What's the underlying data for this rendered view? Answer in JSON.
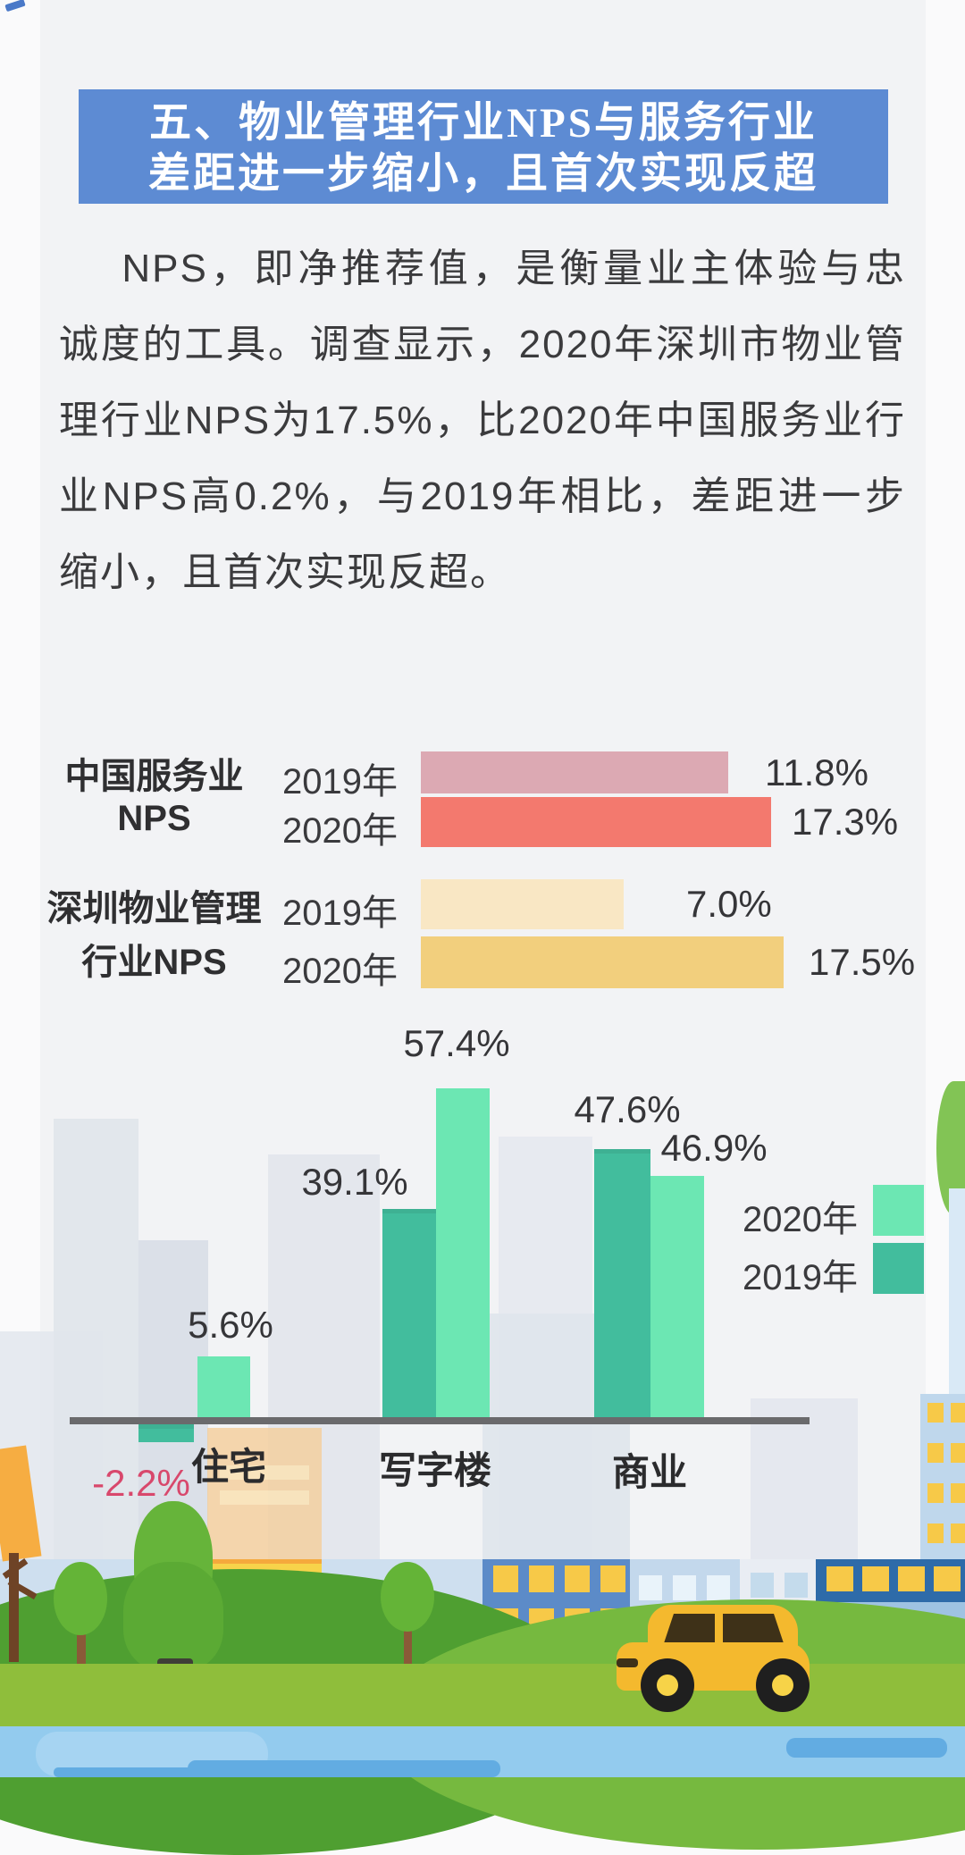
{
  "page": {
    "bg": "#FAFAFB",
    "card_bg": "#F2F3F5"
  },
  "title": {
    "line1": "五、物业管理行业NPS与服务行业",
    "line2": "差距进一步缩小，且首次实现反超",
    "bg_color": "#5D8BD3",
    "text_color": "#FFFFFF"
  },
  "paragraph": {
    "text": "NPS，即净推荐值，是衡量业主体验与忠诚度的工具。调查显示，2020年深圳市物业管理行业NPS为17.5%，比2020年中国服务业行业NPS高0.2%，与2019年相比，差距进一步缩小，且首次实现反超。"
  },
  "chart_data": [
    {
      "type": "bar",
      "orientation": "horizontal",
      "groups": [
        {
          "label_lines": [
            "中国服务业",
            "NPS"
          ],
          "bars": [
            {
              "year": "2019年",
              "value": 11.8,
              "display": "11.8%",
              "color": "#DCA9B3"
            },
            {
              "year": "2020年",
              "value": 17.3,
              "display": "17.3%",
              "color": "#F3796E"
            }
          ]
        },
        {
          "label_lines": [
            "深圳物业管理",
            "行业NPS"
          ],
          "bars": [
            {
              "year": "2019年",
              "value": 7.0,
              "display": "7.0%",
              "color": "#F9E7C4"
            },
            {
              "year": "2020年",
              "value": 17.5,
              "display": "17.5%",
              "color": "#F2CF7D"
            }
          ]
        }
      ]
    },
    {
      "type": "bar",
      "orientation": "vertical",
      "categories": [
        "住宅",
        "写字楼",
        "商业"
      ],
      "series": [
        {
          "name": "2019年",
          "color": "#42BD9D",
          "values": [
            -2.2,
            39.1,
            47.6
          ],
          "displays": [
            "-2.2%",
            "39.1%",
            "47.6%"
          ]
        },
        {
          "name": "2020年",
          "color": "#6CE7B3",
          "values": [
            5.6,
            57.4,
            46.9
          ],
          "displays": [
            "5.6%",
            "57.4%",
            "46.9%"
          ]
        }
      ],
      "legend": [
        {
          "label": "2020年",
          "color": "#6CE7B3"
        },
        {
          "label": "2019年",
          "color": "#42BD9D"
        }
      ],
      "negative_value_color": "#D8486C",
      "axis_color": "#6A6A6C"
    }
  ]
}
